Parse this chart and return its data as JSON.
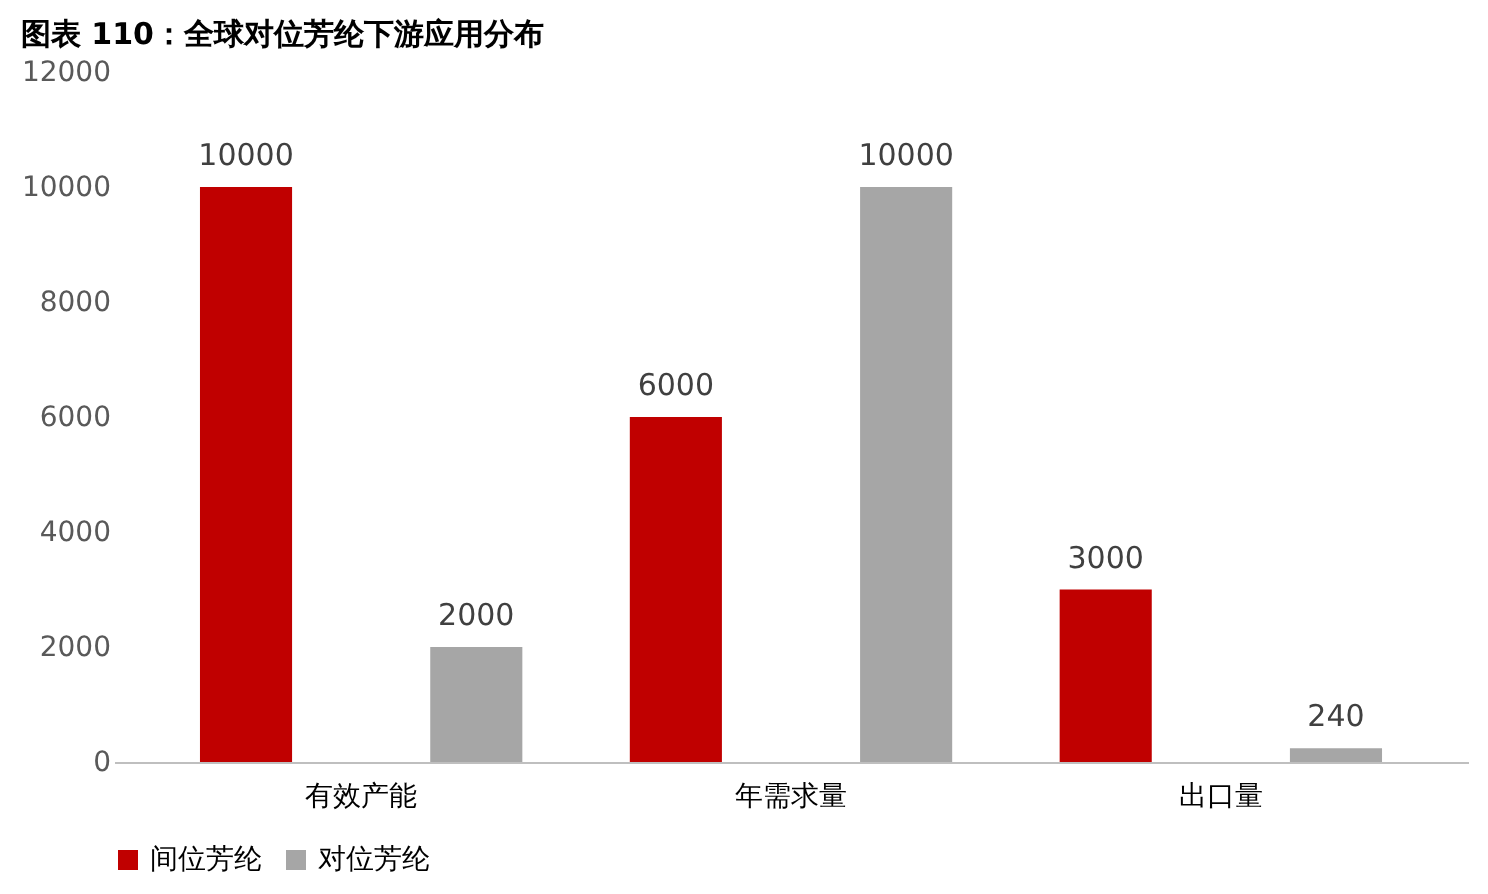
{
  "chart_data": {
    "type": "bar",
    "title": "图表 110：全球对位芳纶下游应用分布",
    "categories": [
      "有效产能",
      "年需求量",
      "出口量"
    ],
    "series": [
      {
        "name": "间位芳纶",
        "color": "#c00000",
        "values": [
          10000,
          6000,
          3000
        ]
      },
      {
        "name": "对位芳纶",
        "color": "#a6a6a6",
        "values": [
          2000,
          10000,
          240
        ]
      }
    ],
    "ylim": [
      0,
      12000
    ],
    "yticks": [
      0,
      2000,
      4000,
      6000,
      8000,
      10000,
      12000
    ],
    "grid": false,
    "legend": "bottom",
    "data_labels": true
  }
}
